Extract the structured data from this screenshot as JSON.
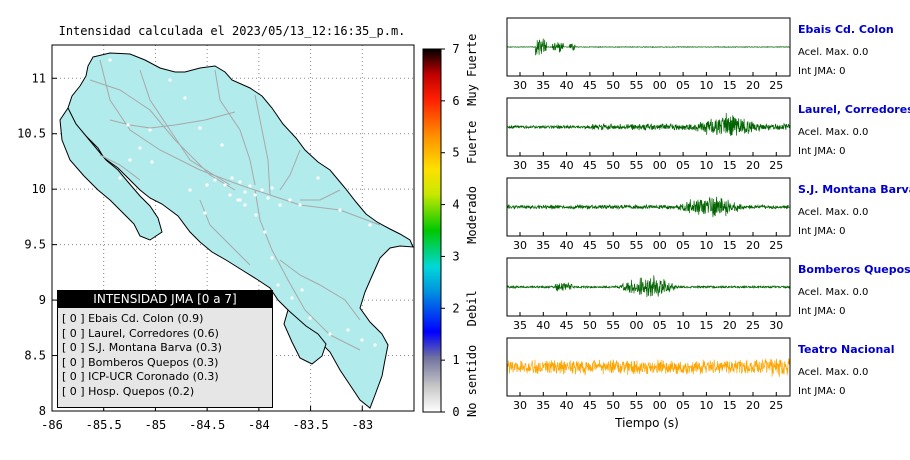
{
  "map": {
    "title": "Intensidad calculada el 2023/05/13_12:16:35_p.m.",
    "x_ticks": [
      "-86",
      "-85.5",
      "-85",
      "-84.5",
      "-84",
      "-83.5",
      "-83"
    ],
    "y_ticks": [
      "11",
      "10.5",
      "10",
      "9.5",
      "9",
      "8.5",
      "8"
    ],
    "xlim": [
      -86,
      -82.5
    ],
    "ylim": [
      8,
      11.3
    ],
    "land_color": "#b2ebec"
  },
  "legend": {
    "title": "INTENSIDAD JMA [0 a 7]",
    "items": [
      "[ 0 ]  Ebais Cd. Colon (0.9)",
      "[ 0 ]  Laurel, Corredores (0.6)",
      "[ 0 ]  S.J. Montana Barva (0.3)",
      "[ 0 ]  Bomberos Quepos (0.3)",
      "[ 0 ]  ICP-UCR Coronado (0.3)",
      "[ 0 ]  Hosp. Quepos (0.2)"
    ]
  },
  "colorbar": {
    "ticks": [
      "0",
      "1",
      "2",
      "3",
      "4",
      "5",
      "6",
      "7"
    ],
    "category_labels": [
      "No sentido",
      "Debil",
      "Moderado",
      "Fuerte",
      "Muy Fuerte"
    ]
  },
  "waveforms": {
    "xlabel": "Tiempo (s)",
    "accel_label": "Acel. Max. 0.0",
    "jma_label": "Int JMA: 0",
    "stations": [
      {
        "name": "Ebais Cd. Colon",
        "color": "#006400",
        "ticks": [
          "30",
          "35",
          "40",
          "45",
          "50",
          "55",
          "00",
          "05",
          "10",
          "15",
          "20",
          "25"
        ]
      },
      {
        "name": "Laurel, Corredores",
        "color": "#006400",
        "ticks": [
          "30",
          "35",
          "40",
          "45",
          "50",
          "55",
          "00",
          "05",
          "10",
          "15",
          "20",
          "25"
        ]
      },
      {
        "name": "S.J. Montana Barva",
        "color": "#006400",
        "ticks": [
          "30",
          "35",
          "40",
          "45",
          "50",
          "55",
          "00",
          "05",
          "10",
          "15",
          "20",
          "25"
        ]
      },
      {
        "name": "Bomberos Quepos",
        "color": "#006400",
        "ticks": [
          "35",
          "40",
          "45",
          "50",
          "55",
          "00",
          "05",
          "10",
          "15",
          "20",
          "25",
          "30"
        ]
      },
      {
        "name": "Teatro Nacional",
        "color": "#ffa500",
        "ticks": [
          "30",
          "35",
          "40",
          "45",
          "50",
          "55",
          "00",
          "05",
          "10",
          "15",
          "20",
          "25"
        ]
      }
    ],
    "station_label_color": "#0000cc"
  }
}
